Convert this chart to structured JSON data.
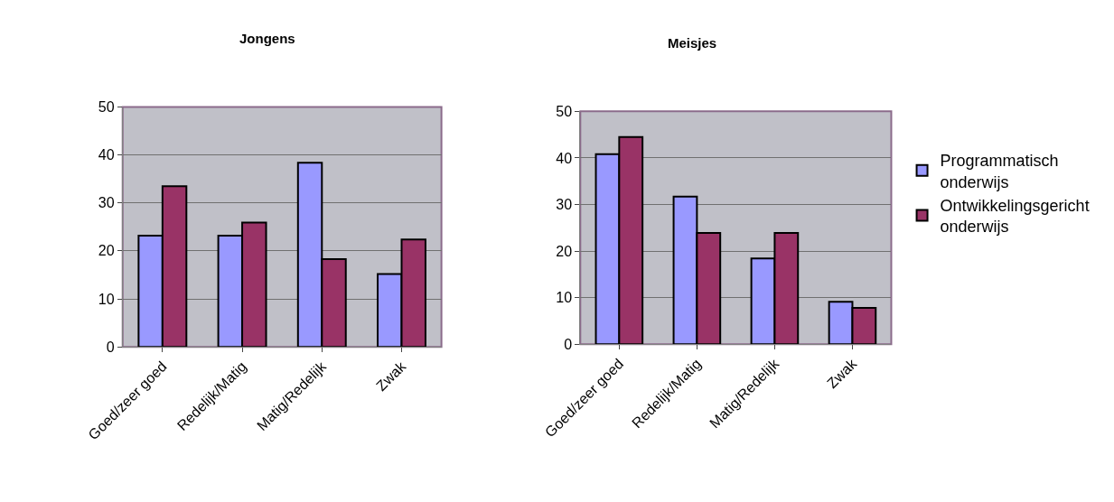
{
  "chart_data": [
    {
      "type": "bar",
      "title": "Jongens",
      "categories": [
        "Goed/zeer goed",
        "Redelijk/Matig",
        "Matig/Redelijk",
        "Zwak"
      ],
      "series": [
        {
          "color": "#9999ff",
          "values": [
            23.2,
            23.2,
            38.4,
            15.2
          ]
        },
        {
          "color": "#993366",
          "values": [
            33.5,
            25.9,
            18.3,
            22.4
          ]
        }
      ],
      "ylim": [
        0,
        50
      ],
      "yticks": [
        0,
        10,
        20,
        30,
        40,
        50
      ],
      "grid": "y",
      "legend": false
    },
    {
      "type": "bar",
      "title": "Meisjes",
      "categories": [
        "Goed/zeer goed",
        "Redelijk/Matig",
        "Matig/Redelijk",
        "Zwak"
      ],
      "series": [
        {
          "name": "Programmatisch onderwijs",
          "color": "#9999ff",
          "values": [
            40.8,
            31.7,
            18.4,
            9.1
          ]
        },
        {
          "name": "Ontwikkelingsgericht onderwijs",
          "color": "#993366",
          "values": [
            44.5,
            23.9,
            23.9,
            7.8
          ]
        }
      ],
      "ylim": [
        0,
        50
      ],
      "yticks": [
        0,
        10,
        20,
        30,
        40,
        50
      ],
      "grid": "y",
      "legend": "right"
    }
  ]
}
